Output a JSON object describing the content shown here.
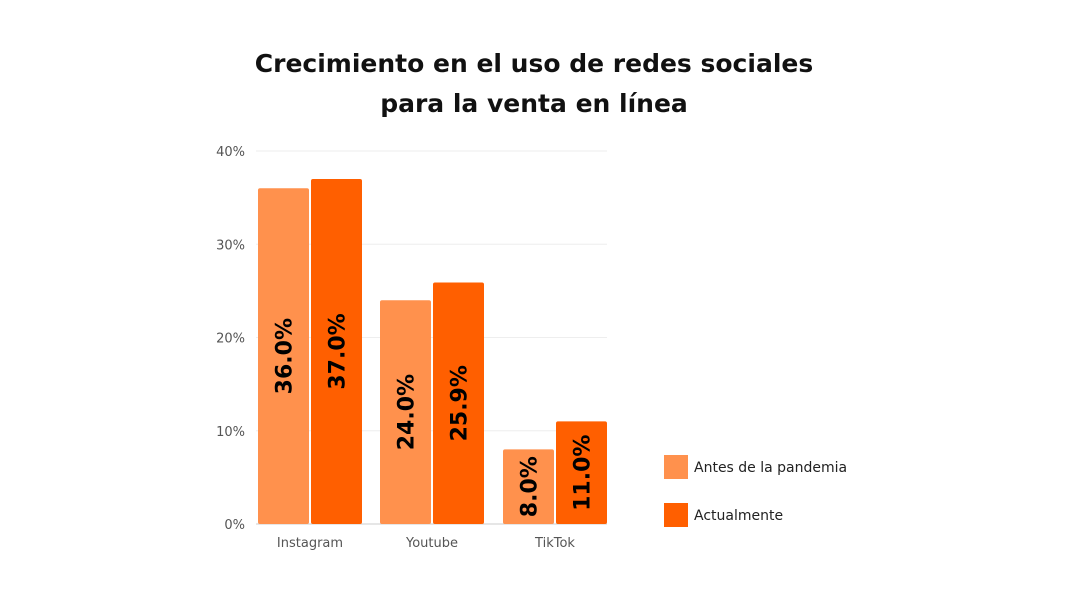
{
  "chart_data": {
    "type": "bar",
    "title_lines": [
      "Crecimiento en el uso de redes sociales",
      "para la venta en línea"
    ],
    "categories": [
      "Instagram",
      "Youtube",
      "TikTok"
    ],
    "series": [
      {
        "name": "Antes de la pandemia",
        "color": "#FF914D",
        "values": [
          36.0,
          24.0,
          8.0
        ],
        "labels": [
          "36.0%",
          "24.0%",
          "8.0%"
        ]
      },
      {
        "name": "Actualmente",
        "color": "#FF5F00",
        "values": [
          37.0,
          25.9,
          11.0
        ],
        "labels": [
          "37.0%",
          "25.9%",
          "11.0%"
        ]
      }
    ],
    "y_ticks": [
      {
        "value": 0,
        "label": "0%"
      },
      {
        "value": 10,
        "label": "10%"
      },
      {
        "value": 20,
        "label": "20%"
      },
      {
        "value": 30,
        "label": "30%"
      },
      {
        "value": 40,
        "label": "40%"
      }
    ],
    "ylim": [
      0,
      40
    ],
    "grid": true,
    "legend_position": "right-bottom"
  }
}
